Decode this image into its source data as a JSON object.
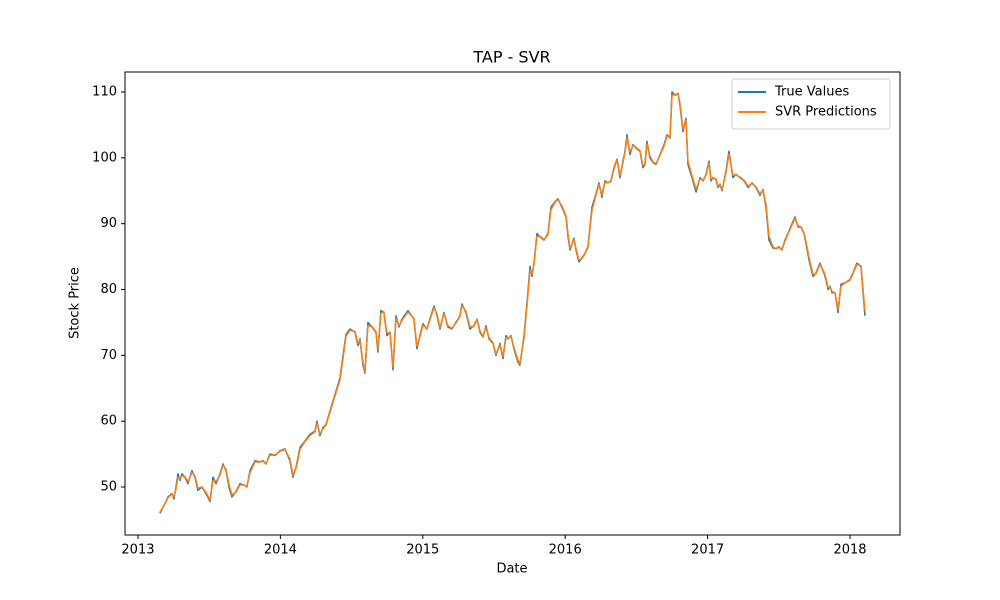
{
  "chart_data": {
    "type": "line",
    "title": "TAP - SVR",
    "xlabel": "Date",
    "ylabel": "Stock Price",
    "x": [
      2013.154,
      2013.19,
      2013.211,
      2013.239,
      2013.253,
      2013.267,
      2013.281,
      2013.295,
      2013.309,
      2013.33,
      2013.351,
      2013.379,
      2013.4,
      2013.421,
      2013.449,
      2013.478,
      2013.506,
      2013.527,
      2013.548,
      2013.576,
      2013.597,
      2013.618,
      2013.639,
      2013.66,
      2013.688,
      2013.716,
      2013.744,
      2013.765,
      2013.787,
      2013.822,
      2013.857,
      2013.878,
      2013.899,
      2013.927,
      2013.962,
      2013.997,
      2014.032,
      2014.067,
      2014.088,
      2014.11,
      2014.138,
      2014.173,
      2014.208,
      2014.243,
      2014.257,
      2014.278,
      2014.299,
      2014.32,
      2014.348,
      2014.383,
      2014.418,
      2014.44,
      2014.461,
      2014.489,
      2014.524,
      2014.545,
      2014.559,
      2014.58,
      2014.594,
      2014.615,
      2014.643,
      2014.671,
      2014.685,
      2014.706,
      2014.727,
      2014.748,
      2014.77,
      2014.791,
      2014.812,
      2014.833,
      2014.854,
      2014.896,
      2014.938,
      2014.959,
      2014.98,
      2015.001,
      2015.029,
      2015.05,
      2015.079,
      2015.1,
      2015.121,
      2015.149,
      2015.177,
      2015.205,
      2015.233,
      2015.261,
      2015.275,
      2015.303,
      2015.331,
      2015.359,
      2015.381,
      2015.402,
      2015.423,
      2015.444,
      2015.465,
      2015.493,
      2015.514,
      2015.542,
      2015.563,
      2015.584,
      2015.598,
      2015.619,
      2015.64,
      2015.668,
      2015.682,
      2015.711,
      2015.732,
      2015.753,
      2015.767,
      2015.781,
      2015.802,
      2015.823,
      2015.851,
      2015.879,
      2015.9,
      2015.928,
      2015.949,
      2015.977,
      2016.006,
      2016.02,
      2016.034,
      2016.062,
      2016.076,
      2016.097,
      2016.118,
      2016.139,
      2016.16,
      2016.188,
      2016.216,
      2016.237,
      2016.258,
      2016.279,
      2016.3,
      2016.321,
      2016.343,
      2016.364,
      2016.385,
      2016.406,
      2016.42,
      2016.434,
      2016.455,
      2016.476,
      2016.497,
      2016.525,
      2016.546,
      2016.56,
      2016.574,
      2016.595,
      2016.616,
      2016.638,
      2016.666,
      2016.694,
      2016.715,
      2016.736,
      2016.75,
      2016.771,
      2016.792,
      2016.806,
      2016.827,
      2016.848,
      2016.862,
      2016.89,
      2016.919,
      2016.947,
      2016.968,
      2016.989,
      2017.01,
      2017.024,
      2017.038,
      2017.059,
      2017.073,
      2017.087,
      2017.101,
      2017.129,
      2017.15,
      2017.178,
      2017.199,
      2017.227,
      2017.256,
      2017.284,
      2017.312,
      2017.34,
      2017.368,
      2017.389,
      2017.41,
      2017.431,
      2017.459,
      2017.48,
      2017.501,
      2017.522,
      2017.543,
      2017.564,
      2017.593,
      2017.614,
      2017.635,
      2017.656,
      2017.677,
      2017.691,
      2017.712,
      2017.74,
      2017.761,
      2017.789,
      2017.817,
      2017.831,
      2017.846,
      2017.86,
      2017.874,
      2017.895,
      2017.916,
      2017.937,
      2017.965,
      2018.0,
      2018.021,
      2018.049,
      2018.077,
      2018.105
    ],
    "series": [
      {
        "name": "True Values",
        "color": "#1f77b4",
        "values": [
          46,
          47.5,
          48.5,
          49,
          48.2,
          50,
          52,
          51,
          52,
          51.5,
          50.5,
          52.5,
          51.5,
          49.5,
          50,
          49,
          47.8,
          51.5,
          50.5,
          52,
          53.5,
          52.5,
          50,
          48.5,
          49.3,
          50.5,
          50.3,
          50,
          52.5,
          54,
          53.8,
          54,
          53.5,
          55,
          54.8,
          55.5,
          55.8,
          54,
          51.5,
          53,
          56,
          57,
          58,
          58.5,
          60,
          57.8,
          59,
          59.5,
          61.5,
          64,
          66.5,
          70,
          73.2,
          74,
          73.5,
          71.5,
          72.5,
          68.5,
          67.3,
          75,
          74.3,
          73.5,
          70.5,
          76.8,
          76.5,
          73,
          73.5,
          67.8,
          76,
          74.3,
          75.5,
          76.8,
          75.5,
          71,
          73,
          74.8,
          74,
          75.5,
          77.5,
          76,
          74,
          76.5,
          74.3,
          74,
          75,
          76,
          77.8,
          76.5,
          74,
          74.5,
          75.5,
          73.5,
          72.8,
          74.5,
          72.5,
          71.8,
          70,
          71.8,
          69.5,
          73,
          72.5,
          73,
          71,
          69,
          68.5,
          73,
          78,
          83.5,
          82,
          84,
          88.5,
          88,
          87.5,
          88.5,
          92.5,
          93.3,
          93.8,
          92.5,
          91,
          88,
          86,
          87.8,
          86,
          84.2,
          84.8,
          85.5,
          86.5,
          92.5,
          94.5,
          96.2,
          94,
          96.5,
          96.2,
          96.5,
          98.5,
          99.8,
          97,
          99.5,
          101,
          103.5,
          100.5,
          102,
          101.5,
          101,
          98.5,
          99,
          102.5,
          100,
          99.3,
          99,
          100.5,
          102,
          103.5,
          103,
          110,
          109.5,
          109.8,
          108,
          104,
          106,
          99,
          97,
          94.8,
          97,
          96.5,
          97.5,
          99.5,
          96.5,
          97,
          96.7,
          95.5,
          96,
          95,
          98,
          101,
          97,
          97.5,
          97,
          96.5,
          95.5,
          96.2,
          95.5,
          94.3,
          95.2,
          92.5,
          87.5,
          86.3,
          86.2,
          86.5,
          86,
          87.5,
          88.5,
          90,
          91,
          89.5,
          89.5,
          88.5,
          87,
          84.5,
          82,
          82.5,
          84,
          82.5,
          81.5,
          80,
          80.5,
          79.5,
          79.5,
          76.5,
          80.8,
          81,
          81.5,
          82.5,
          84,
          83.5,
          76
        ]
      },
      {
        "name": "SVR Predictions",
        "color": "#ff7f0e",
        "values": [
          46.2,
          47.4,
          48.4,
          48.9,
          48.5,
          49.7,
          51.5,
          51.2,
          51.7,
          51.6,
          50.8,
          52.2,
          51.7,
          49.8,
          50,
          49.2,
          48,
          51,
          50.8,
          51.8,
          53.3,
          52.7,
          50.4,
          48.8,
          49.2,
          50.3,
          50.3,
          50.1,
          52.2,
          53.8,
          53.8,
          53.9,
          53.6,
          54.8,
          54.9,
          55.4,
          55.7,
          54.3,
          51.8,
          52.8,
          55.7,
          56.9,
          57.8,
          58.4,
          59.7,
          58.1,
          58.8,
          59.4,
          61.3,
          63.8,
          66.2,
          69.6,
          72.9,
          73.8,
          73.6,
          71.8,
          72.3,
          68.9,
          67.5,
          74.5,
          74.4,
          73.6,
          70.9,
          76.4,
          76.6,
          73.4,
          73.4,
          68.2,
          75.6,
          74.5,
          75.3,
          76.6,
          75.6,
          71.4,
          72.8,
          74.6,
          74.1,
          75.3,
          77.3,
          76.2,
          74.2,
          76.3,
          74.5,
          74.1,
          74.9,
          75.9,
          77.6,
          76.7,
          74.3,
          74.4,
          75.4,
          73.7,
          72.9,
          74.3,
          72.7,
          71.9,
          70.2,
          71.6,
          69.8,
          72.7,
          72.6,
          72.9,
          71.2,
          69.3,
          68.7,
          72.6,
          77.6,
          83,
          82.3,
          83.8,
          88.1,
          88.1,
          87.6,
          88.3,
          92.1,
          93.2,
          93.7,
          92.7,
          91.2,
          88.4,
          86.2,
          87.6,
          86.2,
          84.5,
          84.7,
          85.4,
          86.4,
          92,
          94.3,
          96,
          94.3,
          96.3,
          96.2,
          96.4,
          98.3,
          99.7,
          97.3,
          99.3,
          100.8,
          103.1,
          100.9,
          101.9,
          101.6,
          101.1,
          98.8,
          98.9,
          102.1,
          100.3,
          99.4,
          99.1,
          100.4,
          101.8,
          103.3,
          103.1,
          109.5,
          109.6,
          109.7,
          108.3,
          104.4,
          105.7,
          99.5,
          97.3,
          95.2,
          96.8,
          96.6,
          97.4,
          99.2,
          96.8,
          96.9,
          96.8,
          95.7,
          95.9,
          95.2,
          97.7,
          100.6,
          97.4,
          97.4,
          97.1,
          96.6,
          95.7,
          96.1,
          95.6,
          94.5,
          95.1,
          93,
          88.1,
          86.5,
          86.2,
          86.4,
          86.1,
          87.3,
          88.4,
          89.8,
          90.8,
          89.7,
          89.5,
          88.6,
          87.3,
          84.9,
          82.3,
          82.4,
          83.8,
          82.7,
          81.7,
          80.3,
          80.4,
          79.7,
          79.5,
          77,
          80.5,
          81,
          81.4,
          82.4,
          83.8,
          83.6,
          76.7
        ]
      }
    ],
    "xlim": [
      2012.909,
      2018.351
    ],
    "xticks": [
      2013,
      2014,
      2015,
      2016,
      2017,
      2018
    ],
    "ylim": [
      42.71,
      113.04
    ],
    "yticks": [
      50,
      60,
      70,
      80,
      90,
      100,
      110
    ],
    "legend": "upper right",
    "grid": false
  }
}
